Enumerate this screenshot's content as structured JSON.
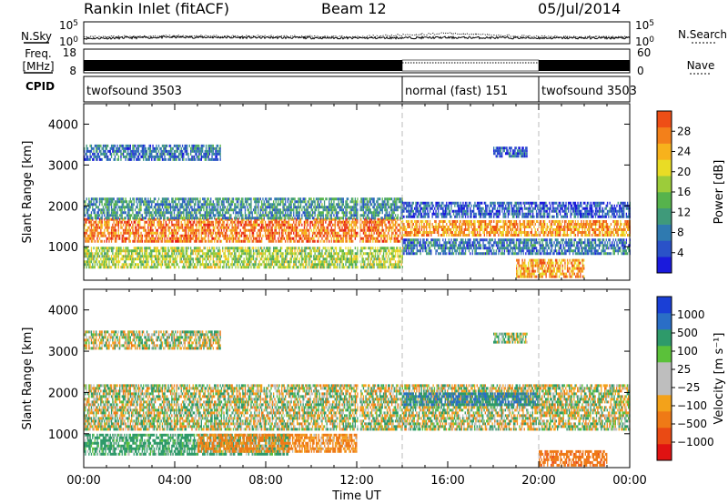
{
  "header": {
    "title": "Rankin Inlet (fitACF)",
    "beam": "Beam 12",
    "date": "05/Jul/2014"
  },
  "colors": {
    "power_scale": [
      "#1a1adc",
      "#2a52c8",
      "#2f7ab0",
      "#3f9a7a",
      "#56b34c",
      "#9ccc3a",
      "#e9dc25",
      "#f7b21c",
      "#f3801a",
      "#ee4e16",
      "#e81d13",
      "#d00f0f"
    ],
    "velocity_scale": [
      "#1a3fd6",
      "#2a6ec6",
      "#2e9a6a",
      "#5bc13a",
      "#bebebe",
      "#bebebe",
      "#f3a21a",
      "#ef7a16",
      "#ea4a14",
      "#e01212"
    ],
    "ground_scatter": "#bdbdbd"
  },
  "chart_data": [
    {
      "type": "line",
      "name": "noise-panel",
      "left_label": [
        "N.Sky"
      ],
      "right_label": [
        "N.Search"
      ],
      "left_ticks": [
        "10^5",
        "10^0"
      ],
      "right_ticks": [
        "10^5",
        "10^0"
      ],
      "ylim": [
        0,
        5
      ],
      "yscale": "log",
      "x": [
        "00:00",
        "04:00",
        "08:00",
        "12:00",
        "16:00",
        "20:00",
        "00:00"
      ],
      "series": [
        {
          "name": "N.Sky",
          "values": [
            1.2,
            1.5,
            1.4,
            1.3,
            1.4,
            1.3,
            1.3
          ]
        },
        {
          "name": "N.Search",
          "values": [
            1.5,
            1.8,
            1.7,
            1.6,
            2.4,
            1.6,
            1.6
          ]
        }
      ]
    },
    {
      "type": "line",
      "name": "frequency-panel",
      "left_label": [
        "Freq.",
        "[MHz]"
      ],
      "right_label": [
        "Nave"
      ],
      "left_ticks": [
        "18",
        "8"
      ],
      "right_ticks": [
        "60",
        "0"
      ],
      "x": [
        "00:00",
        "04:00",
        "08:00",
        "12:00",
        "16:00",
        "20:00",
        "00:00"
      ],
      "series": [
        {
          "name": "Freq.",
          "values": [
            10.5,
            10.5,
            10.5,
            10.5,
            10.5,
            10.5,
            10.5
          ]
        },
        {
          "name": "Nave",
          "values": [
            55,
            55,
            55,
            55,
            60,
            55,
            55
          ]
        }
      ]
    },
    {
      "type": "table",
      "name": "cpid-panel",
      "label": "CPID",
      "segments": [
        {
          "text": "twofsound 3503",
          "start": 0,
          "end": 14
        },
        {
          "text": "normal (fast) 151",
          "start": 14,
          "end": 20
        },
        {
          "text": "twofsound 3503",
          "start": 20,
          "end": 24
        }
      ]
    },
    {
      "type": "heatmap",
      "name": "power-panel",
      "xlabel": "",
      "ylabel": "Slant Range [km]",
      "xlim": [
        0,
        24
      ],
      "ylim": [
        180,
        4500
      ],
      "yticks": [
        "1000",
        "2000",
        "3000",
        "4000"
      ],
      "colorbar_label": "Power [dB]",
      "colorbar_ticks": [
        "4",
        "8",
        "12",
        "16",
        "20",
        "24",
        "28"
      ],
      "bands": [
        {
          "t0": 0.0,
          "t1": 14.0,
          "r0": 1150,
          "r1": 1700,
          "level": 24
        },
        {
          "t0": 0.0,
          "t1": 14.0,
          "r0": 1700,
          "r1": 2200,
          "level": 10
        },
        {
          "t0": 0.0,
          "t1": 14.0,
          "r0": 500,
          "r1": 1000,
          "level": 16
        },
        {
          "t0": 0.0,
          "t1": 6.0,
          "r0": 3100,
          "r1": 3500,
          "level": 8
        },
        {
          "t0": 14.0,
          "t1": 24.0,
          "r0": 1300,
          "r1": 1650,
          "level": 22
        },
        {
          "t0": 14.0,
          "t1": 24.0,
          "r0": 1700,
          "r1": 2100,
          "level": 6
        },
        {
          "t0": 14.0,
          "t1": 24.0,
          "r0": 800,
          "r1": 1200,
          "level": 8
        },
        {
          "t0": 19.0,
          "t1": 22.0,
          "r0": 250,
          "r1": 700,
          "level": 22
        },
        {
          "t0": 18.0,
          "t1": 19.5,
          "r0": 3200,
          "r1": 3450,
          "level": 6
        }
      ]
    },
    {
      "type": "heatmap",
      "name": "velocity-panel",
      "xlabel": "Time UT",
      "ylabel": "Slant Range [km]",
      "xlim": [
        0,
        24
      ],
      "ylim": [
        180,
        4500
      ],
      "xticks": [
        "00:00",
        "04:00",
        "08:00",
        "12:00",
        "16:00",
        "20:00",
        "00:00"
      ],
      "yticks": [
        "1000",
        "2000",
        "3000",
        "4000"
      ],
      "colorbar_label": "Velocity [m s⁻¹]",
      "colorbar_ticks": [
        "1000",
        "500",
        "100",
        "25",
        "−25",
        "−100",
        "−500",
        "−1000"
      ],
      "bands": [
        {
          "t0": 0.0,
          "t1": 24.0,
          "r0": 1100,
          "r1": 2200,
          "level": 0
        },
        {
          "t0": 0.0,
          "t1": 9.0,
          "r0": 500,
          "r1": 1000,
          "level": 150
        },
        {
          "t0": 5.0,
          "t1": 12.0,
          "r0": 600,
          "r1": 1000,
          "level": -150
        },
        {
          "t0": 0.0,
          "t1": 6.0,
          "r0": 3100,
          "r1": 3500,
          "level": 0
        },
        {
          "t0": 20.0,
          "t1": 23.0,
          "r0": 250,
          "r1": 600,
          "level": -400
        },
        {
          "t0": 14.0,
          "t1": 20.0,
          "r0": 1700,
          "r1": 2000,
          "level": 300
        },
        {
          "t0": 18.0,
          "t1": 19.5,
          "r0": 3250,
          "r1": 3450,
          "level": 50
        }
      ]
    }
  ]
}
